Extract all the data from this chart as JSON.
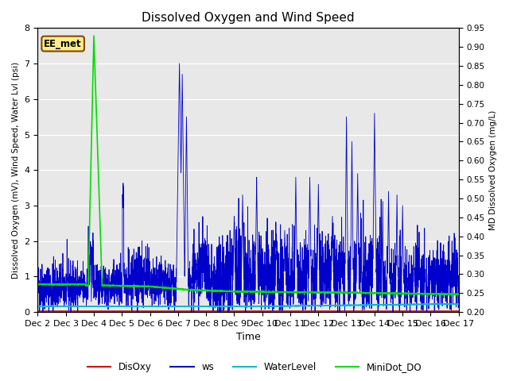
{
  "title": "Dissolved Oxygen and Wind Speed",
  "ylabel_left": "Dissolved Oxygen (mV), Wind Speed, Water Lvl (psi)",
  "ylabel_right": "MD Dissolved Oxygen (mg/L)",
  "xlabel": "Time",
  "annotation": "EE_met",
  "ylim_left": [
    0.0,
    8.0
  ],
  "ylim_right": [
    0.2,
    0.95
  ],
  "yticks_left": [
    0.0,
    1.0,
    2.0,
    3.0,
    4.0,
    5.0,
    6.0,
    7.0,
    8.0
  ],
  "yticks_right": [
    0.2,
    0.25,
    0.3,
    0.35,
    0.4,
    0.45,
    0.5,
    0.55,
    0.6,
    0.65,
    0.7,
    0.75,
    0.8,
    0.85,
    0.9,
    0.95
  ],
  "xtick_labels": [
    "Dec 2",
    "Dec 3",
    "Dec 4",
    "Dec 5",
    "Dec 6",
    "Dec 7",
    "Dec 8",
    "Dec 9",
    "Dec 10",
    "Dec 11",
    "Dec 12",
    "Dec 13",
    "Dec 14",
    "Dec 15",
    "Dec 16",
    "Dec 17"
  ],
  "colors": {
    "DisOxy": "#dd0000",
    "ws": "#0000cc",
    "WaterLevel": "#00bbcc",
    "MiniDot_DO": "#00dd00",
    "background": "#e8e8e8",
    "annotation_bg": "#ffee88",
    "annotation_border": "#884400"
  }
}
